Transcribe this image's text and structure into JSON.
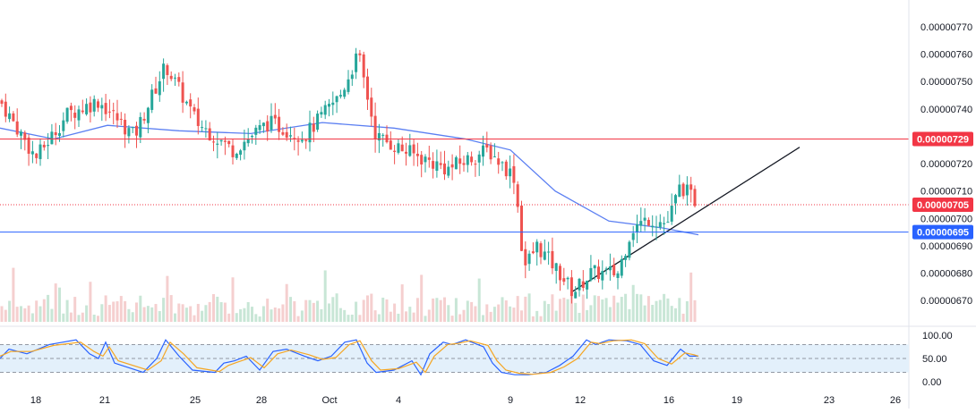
{
  "chart_data": [
    {
      "type": "candlestick",
      "yticks": [
        "0.00000770",
        "0.00000760",
        "0.00000750",
        "0.00000740",
        "0.00000720",
        "0.00000710",
        "0.00000700",
        "0.00000690",
        "0.00000680",
        "0.00000670"
      ],
      "xticks": [
        "18",
        "21",
        "25",
        "28",
        "Oct",
        "4",
        "9",
        "12",
        "16",
        "19",
        "23",
        "26"
      ],
      "ylim": [
        6.635e-06,
        7.785e-06
      ],
      "x": [
        "18",
        "21",
        "25",
        "28",
        "Oct",
        "4",
        "9",
        "12",
        "16",
        "19",
        "23",
        "26"
      ],
      "close_path": [
        [
          0,
          7.43e-06
        ],
        [
          40,
          7.22e-06
        ],
        [
          75,
          7.38e-06
        ],
        [
          110,
          7.43e-06
        ],
        [
          150,
          7.3e-06
        ],
        [
          185,
          7.56e-06
        ],
        [
          220,
          7.35e-06
        ],
        [
          260,
          7.25e-06
        ],
        [
          300,
          7.35e-06
        ],
        [
          340,
          7.3e-06
        ],
        [
          380,
          7.45e-06
        ],
        [
          400,
          7.6e-06
        ],
        [
          420,
          7.3e-06
        ],
        [
          450,
          7.25e-06
        ],
        [
          500,
          7.18e-06
        ],
        [
          545,
          7.25e-06
        ],
        [
          575,
          7.15e-06
        ],
        [
          585,
          6.82e-06
        ],
        [
          600,
          6.9e-06
        ],
        [
          625,
          6.8e-06
        ],
        [
          640,
          6.73e-06
        ],
        [
          660,
          6.8e-06
        ],
        [
          690,
          6.8e-06
        ],
        [
          705,
          6.96e-06
        ],
        [
          725,
          7e-06
        ],
        [
          745,
          6.98e-06
        ],
        [
          760,
          7.12e-06
        ],
        [
          780,
          7.05e-06
        ]
      ],
      "moving_average": [
        [
          0,
          7.33e-06
        ],
        [
          60,
          7.29e-06
        ],
        [
          120,
          7.34e-06
        ],
        [
          200,
          7.32e-06
        ],
        [
          280,
          7.31e-06
        ],
        [
          360,
          7.35e-06
        ],
        [
          440,
          7.33e-06
        ],
        [
          520,
          7.29e-06
        ],
        [
          570,
          7.25e-06
        ],
        [
          620,
          7.1e-06
        ],
        [
          680,
          6.99e-06
        ],
        [
          740,
          6.965e-06
        ],
        [
          780,
          6.94e-06
        ]
      ],
      "trendline": {
        "start": [
          638,
          6.73e-06
        ],
        "end": [
          893,
          7.26e-06
        ]
      },
      "price_lines": [
        {
          "label": "0.00000729",
          "value": 7.29e-06,
          "color": "#f23645",
          "style": "solid"
        },
        {
          "label": "0.00000705",
          "value": 7.05e-06,
          "color": "#f23645",
          "style": "dotted"
        },
        {
          "label": "0.00000695",
          "value": 6.95e-06,
          "color": "#2962ff",
          "style": "solid"
        }
      ],
      "colors": {
        "up": "#26a69a",
        "down": "#ef5350",
        "ma": "#5b7ff2",
        "trendline": "#131722",
        "volume_up": "#c8e6d6",
        "volume_down": "#f5cfcf"
      }
    },
    {
      "type": "line",
      "indicator": "stochastic",
      "yticks": [
        "100.00",
        "50.00",
        "0.00"
      ],
      "ylim": [
        0,
        100
      ],
      "bands": {
        "upper": 80,
        "middle": 50,
        "lower": 20
      },
      "series": [
        {
          "color": "#2962ff",
          "x": [
            0,
            10,
            30,
            55,
            85,
            100,
            110,
            118,
            128,
            160,
            175,
            185,
            200,
            215,
            240,
            250,
            262,
            275,
            290,
            305,
            320,
            340,
            355,
            370,
            385,
            398,
            410,
            420,
            440,
            460,
            470,
            480,
            495,
            505,
            520,
            540,
            550,
            560,
            575,
            590,
            610,
            625,
            640,
            655,
            665,
            680,
            700,
            715,
            730,
            745,
            760,
            770,
            780
          ],
          "y": [
            50,
            70,
            60,
            80,
            90,
            60,
            50,
            85,
            40,
            20,
            50,
            90,
            55,
            25,
            20,
            40,
            45,
            55,
            25,
            65,
            70,
            55,
            45,
            55,
            85,
            90,
            40,
            20,
            25,
            45,
            15,
            60,
            85,
            80,
            90,
            75,
            40,
            20,
            15,
            15,
            20,
            35,
            55,
            90,
            80,
            90,
            88,
            80,
            45,
            35,
            70,
            55,
            55
          ]
        },
        {
          "color": "#f5a623",
          "x": [
            0,
            12,
            35,
            60,
            90,
            105,
            115,
            122,
            132,
            165,
            180,
            190,
            205,
            220,
            245,
            255,
            265,
            280,
            295,
            310,
            325,
            345,
            360,
            375,
            390,
            402,
            415,
            425,
            445,
            465,
            475,
            485,
            500,
            510,
            525,
            545,
            555,
            565,
            580,
            595,
            615,
            630,
            645,
            660,
            670,
            685,
            705,
            720,
            735,
            750,
            765,
            775,
            780
          ],
          "y": [
            55,
            65,
            65,
            78,
            85,
            65,
            55,
            75,
            45,
            25,
            45,
            85,
            60,
            30,
            22,
            35,
            42,
            52,
            30,
            60,
            68,
            58,
            48,
            52,
            80,
            88,
            45,
            25,
            28,
            42,
            20,
            55,
            80,
            82,
            88,
            78,
            45,
            25,
            18,
            16,
            20,
            32,
            50,
            85,
            82,
            88,
            90,
            82,
            50,
            38,
            62,
            58,
            55
          ]
        }
      ]
    }
  ]
}
